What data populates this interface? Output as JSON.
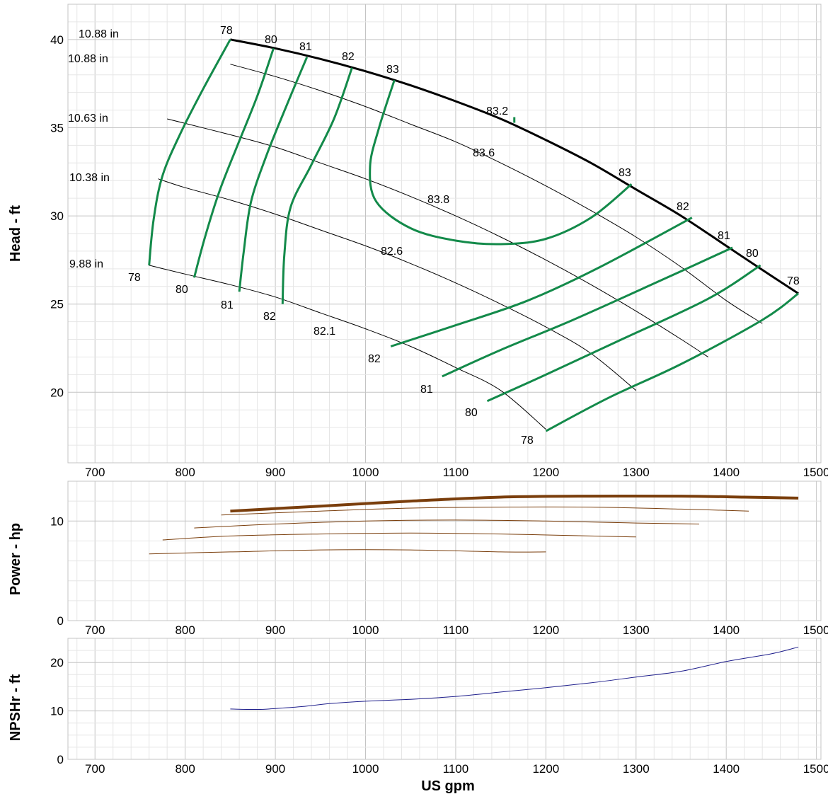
{
  "colors": {
    "grid_major": "#c4c4c4",
    "grid_minor": "#e6e6e6",
    "efficiency": "#138a4a",
    "diameter": "#000000",
    "power": "#7a3e0c",
    "npsh": "#1f1f8c"
  },
  "chart_data": [
    {
      "type": "line",
      "id": "head",
      "ylabel": "Head - ft",
      "xlim": [
        670,
        1505
      ],
      "ylim": [
        16,
        42
      ],
      "xticks": [
        700,
        800,
        900,
        1000,
        1100,
        1200,
        1300,
        1400,
        1500
      ],
      "yticks": [
        20,
        25,
        30,
        35,
        40
      ],
      "grid": true,
      "diameter_curves": [
        {
          "label": "10.88 in",
          "label2": "10.88 in",
          "bold": true,
          "x": [
            850,
            900,
            950,
            1000,
            1050,
            1100,
            1150,
            1200,
            1250,
            1300,
            1350,
            1400,
            1450,
            1480
          ],
          "y": [
            40.0,
            39.5,
            38.9,
            38.2,
            37.4,
            36.5,
            35.5,
            34.3,
            33.0,
            31.5,
            30.0,
            28.3,
            26.6,
            25.6
          ]
        },
        {
          "label": "10.88 in",
          "x": [
            850,
            900,
            950,
            1000,
            1050,
            1100,
            1150,
            1200,
            1250,
            1300,
            1350,
            1400,
            1440
          ],
          "y": [
            38.6,
            37.9,
            37.1,
            36.2,
            35.2,
            34.2,
            33.0,
            31.7,
            30.3,
            28.8,
            27.1,
            25.2,
            23.9
          ]
        },
        {
          "label": "10.63 in",
          "x": [
            780,
            850,
            900,
            950,
            1000,
            1050,
            1100,
            1150,
            1200,
            1250,
            1300,
            1350,
            1380
          ],
          "y": [
            35.5,
            34.6,
            33.9,
            33.0,
            32.1,
            31.1,
            30.0,
            28.8,
            27.5,
            26.1,
            24.6,
            23.0,
            22.0
          ]
        },
        {
          "label": "10.38 in",
          "x": [
            770,
            800,
            850,
            900,
            950,
            1000,
            1050,
            1100,
            1150,
            1200,
            1250,
            1300
          ],
          "y": [
            32.1,
            31.6,
            30.9,
            30.1,
            29.2,
            28.3,
            27.3,
            26.2,
            25.0,
            23.7,
            22.2,
            20.1
          ]
        },
        {
          "label": "9.88 in",
          "x": [
            760,
            800,
            850,
            900,
            950,
            1000,
            1050,
            1100,
            1150,
            1200
          ],
          "y": [
            27.2,
            26.7,
            26.1,
            25.4,
            24.5,
            23.6,
            22.6,
            21.4,
            20.1,
            17.9
          ]
        }
      ],
      "diameter_point_labels": [
        "78",
        "80",
        "81",
        "82",
        "83",
        "83.2",
        "83",
        "82",
        "81",
        "80",
        "78",
        "83.6",
        "83.8",
        "82.6",
        "82.1",
        "78",
        "80",
        "81",
        "82",
        "82",
        "81",
        "80",
        "78"
      ],
      "efficiency_curves": [
        {
          "label": "78",
          "x": [
            850,
            820,
            795,
            775,
            765,
            760
          ],
          "y": [
            40.0,
            37.2,
            34.7,
            32.3,
            29.8,
            27.2
          ]
        },
        {
          "label": "80",
          "x": [
            898,
            880,
            858,
            838,
            822,
            810
          ],
          "y": [
            39.5,
            36.8,
            34.0,
            31.4,
            28.8,
            26.5
          ]
        },
        {
          "label": "81",
          "x": [
            935,
            912,
            890,
            873,
            865,
            860
          ],
          "y": [
            39.0,
            36.2,
            33.4,
            30.8,
            28.0,
            25.7
          ]
        },
        {
          "label": "82",
          "x": [
            985,
            965,
            940,
            917,
            910,
            908
          ],
          "y": [
            38.4,
            35.5,
            32.9,
            30.5,
            27.8,
            25.0
          ]
        },
        {
          "label": "83",
          "x": [
            1032,
            1015,
            1005,
            1012,
            1050,
            1100,
            1150,
            1200,
            1250,
            1295
          ],
          "y": [
            37.7,
            35.0,
            32.8,
            30.8,
            29.3,
            28.6,
            28.4,
            28.7,
            29.9,
            31.8
          ]
        },
        {
          "label": "82",
          "x": [
            1028,
            1100,
            1180,
            1260,
            1362
          ],
          "y": [
            22.6,
            23.8,
            25.2,
            27.1,
            29.9
          ]
        },
        {
          "label": "81",
          "x": [
            1085,
            1150,
            1230,
            1330,
            1407
          ],
          "y": [
            20.9,
            22.4,
            24.1,
            26.4,
            28.2
          ]
        },
        {
          "label": "80",
          "x": [
            1135,
            1200,
            1280,
            1380,
            1438
          ],
          "y": [
            19.5,
            21.0,
            22.9,
            25.3,
            27.2
          ]
        },
        {
          "label": "78",
          "x": [
            1200,
            1270,
            1350,
            1440,
            1480
          ],
          "y": [
            17.8,
            19.7,
            21.6,
            24.1,
            25.6
          ]
        }
      ],
      "bep_marker": {
        "label": "83.2",
        "x": 1165,
        "y": 35.4
      }
    },
    {
      "type": "line",
      "id": "power",
      "ylabel": "Power - hp",
      "xlim": [
        670,
        1505
      ],
      "ylim": [
        0,
        14
      ],
      "xticks": [
        700,
        800,
        900,
        1000,
        1100,
        1200,
        1300,
        1400,
        1500
      ],
      "yticks": [
        0,
        10
      ],
      "grid": true,
      "series": [
        {
          "x": [
            850,
            950,
            1050,
            1150,
            1250,
            1350,
            1420,
            1480
          ],
          "y": [
            11.0,
            11.5,
            12.0,
            12.4,
            12.5,
            12.5,
            12.4,
            12.3
          ],
          "bold": true
        },
        {
          "x": [
            840,
            950,
            1050,
            1150,
            1250,
            1350,
            1425
          ],
          "y": [
            10.6,
            11.0,
            11.3,
            11.4,
            11.4,
            11.2,
            11.0
          ]
        },
        {
          "x": [
            810,
            900,
            1000,
            1100,
            1200,
            1300,
            1370
          ],
          "y": [
            9.3,
            9.7,
            10.0,
            10.1,
            10.0,
            9.8,
            9.7
          ]
        },
        {
          "x": [
            775,
            850,
            950,
            1050,
            1150,
            1250,
            1300
          ],
          "y": [
            8.1,
            8.5,
            8.7,
            8.8,
            8.7,
            8.5,
            8.4
          ]
        },
        {
          "x": [
            760,
            850,
            950,
            1050,
            1150,
            1200
          ],
          "y": [
            6.7,
            6.9,
            7.1,
            7.1,
            6.9,
            6.9
          ]
        }
      ]
    },
    {
      "type": "line",
      "id": "npsh",
      "ylabel": "NPSHr - ft",
      "xlabel": "US gpm",
      "xlim": [
        670,
        1505
      ],
      "ylim": [
        0,
        25
      ],
      "xticks": [
        700,
        800,
        900,
        1000,
        1100,
        1200,
        1300,
        1400,
        1500
      ],
      "yticks": [
        0,
        10,
        20
      ],
      "grid": true,
      "series": [
        {
          "x": [
            850,
            880,
            900,
            930,
            960,
            1000,
            1050,
            1100,
            1150,
            1200,
            1250,
            1300,
            1350,
            1400,
            1450,
            1480
          ],
          "y": [
            10.4,
            10.3,
            10.5,
            10.9,
            11.5,
            12.0,
            12.4,
            13.0,
            13.9,
            14.8,
            15.8,
            17.0,
            18.2,
            20.2,
            21.8,
            23.2
          ]
        }
      ]
    }
  ]
}
